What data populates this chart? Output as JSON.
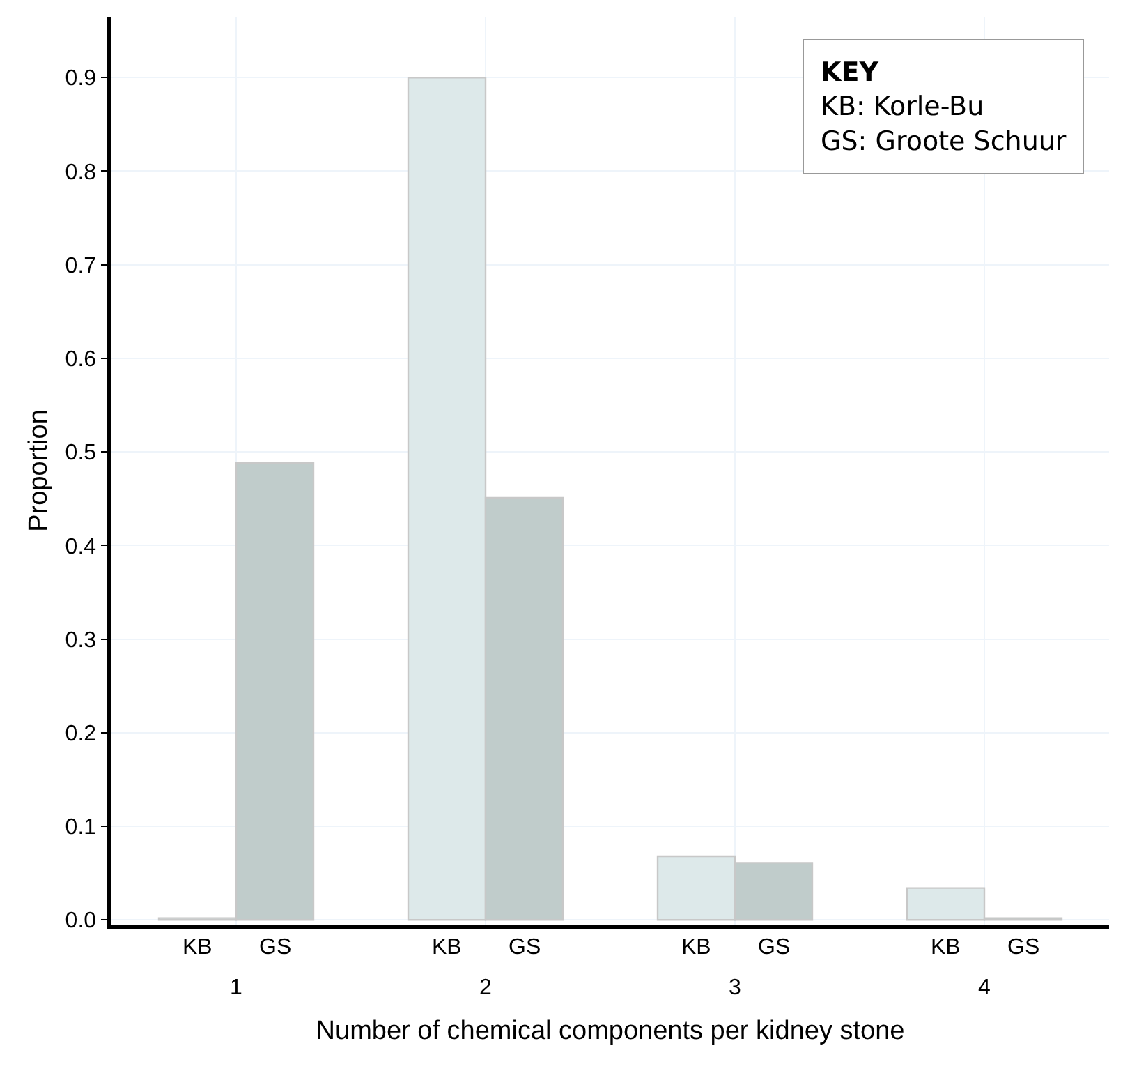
{
  "chart_data": {
    "type": "bar",
    "categories": [
      "1",
      "2",
      "3",
      "4"
    ],
    "series": [
      {
        "name": "KB",
        "color": "#dde9ea",
        "values": [
          0.002,
          0.9,
          0.068,
          0.034
        ]
      },
      {
        "name": "GS",
        "color": "#c0cccb",
        "values": [
          0.488,
          0.451,
          0.061,
          0.002
        ]
      }
    ],
    "xlabel": "Number of chemical components per kidney stone",
    "ylabel": "Proportion",
    "ylim": [
      -0.005,
      0.965
    ],
    "yticks": [
      {
        "value": 0,
        "label": "0.0"
      },
      0.1,
      0.2,
      0.3,
      0.4,
      0.5,
      0.6,
      0.7,
      0.8,
      0.9
    ],
    "grid": true,
    "legend": false,
    "annotations": [
      "KEY\nKB: Korle-Bu\nGS: Groote Schuur"
    ]
  }
}
